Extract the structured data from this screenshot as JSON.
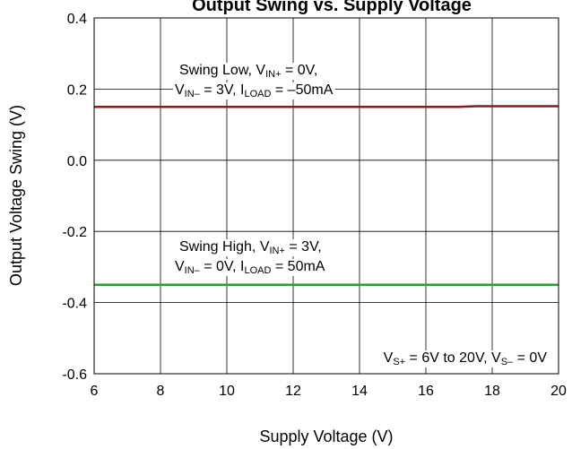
{
  "chart_data": {
    "type": "line",
    "title": "Output Swing vs. Supply Voltage",
    "xlabel": "Supply Voltage (V)",
    "ylabel": "Output Voltage Swing (V)",
    "x": [
      6,
      17,
      17.5,
      20
    ],
    "series": [
      {
        "name": "Swing Low",
        "color": "#8b1a1a",
        "values": [
          0.15,
          0.15,
          0.152,
          0.152
        ]
      },
      {
        "name": "Swing High",
        "color": "#2e9b2e",
        "values": [
          -0.35,
          -0.35,
          -0.35,
          -0.35
        ]
      }
    ],
    "xlim": [
      6,
      20
    ],
    "xticks": [
      6,
      8,
      10,
      12,
      14,
      16,
      18,
      20
    ],
    "ylim": [
      -0.6,
      0.4
    ],
    "yticks": [
      -0.6,
      -0.4,
      -0.2,
      {
        "value": 0,
        "label": "0.0"
      },
      0.2,
      0.4
    ],
    "grid": true,
    "annotations": [
      [
        "Swing Low, V",
        "IN+",
        " = 0V,"
      ],
      [
        "V",
        "IN–",
        " = 3V, I",
        "LOAD",
        " = –50mA"
      ],
      [
        "Swing High, V",
        "IN+",
        " = 3V,"
      ],
      [
        "V",
        "IN–",
        " = 0V, I",
        "LOAD",
        " = 50mA"
      ],
      [
        "V",
        "S+",
        " = 6V to 20V, V",
        "S–",
        " = 0V"
      ]
    ]
  }
}
